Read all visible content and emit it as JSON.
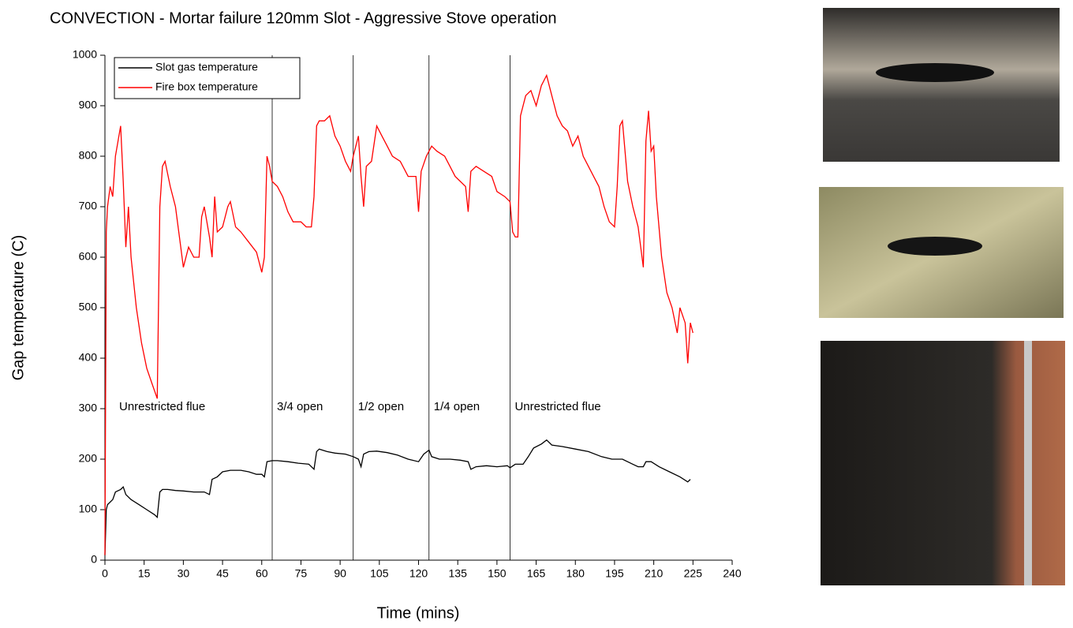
{
  "chart_data": {
    "type": "line",
    "title": "CONVECTION - Mortar failure 120mm Slot - Aggressive Stove operation",
    "x_label": "Time (mins)",
    "y_label": "Gap temperature (C)",
    "xlim": [
      0,
      240
    ],
    "xticks": [
      0,
      15,
      30,
      45,
      60,
      75,
      90,
      105,
      120,
      135,
      150,
      165,
      180,
      195,
      210,
      225,
      240
    ],
    "ylim": [
      0,
      1000
    ],
    "yticks": [
      0,
      100,
      200,
      300,
      400,
      500,
      600,
      700,
      800,
      900,
      1000
    ],
    "legend": "top-left",
    "vlines": [
      64,
      95,
      124,
      155
    ],
    "annotations": [
      "Unrestricted flue",
      "3/4 open",
      "1/2 open",
      "1/4 open",
      "Unrestricted flue"
    ],
    "series": [
      {
        "name": "Slot gas temperature",
        "color": "#000000",
        "x": [
          0,
          0.5,
          1,
          3,
          4,
          6,
          7,
          8,
          10,
          13,
          16,
          19,
          20,
          21,
          22,
          24,
          27,
          30,
          34,
          38,
          40,
          41,
          43,
          45,
          48,
          52,
          55,
          58,
          60,
          61,
          62,
          64,
          66,
          70,
          74,
          78,
          80,
          81,
          82,
          85,
          88,
          92,
          95,
          97,
          98,
          99,
          101,
          104,
          108,
          112,
          116,
          120,
          122,
          124,
          125,
          128,
          132,
          136,
          139,
          140,
          142,
          146,
          150,
          154,
          155,
          157,
          160,
          162,
          164,
          167,
          169,
          171,
          175,
          180,
          185,
          190,
          194,
          198,
          202,
          204,
          206,
          207,
          209,
          212,
          216,
          220,
          223,
          224
        ],
        "values": [
          10,
          100,
          110,
          120,
          135,
          140,
          145,
          130,
          120,
          110,
          100,
          90,
          85,
          135,
          140,
          140,
          138,
          137,
          135,
          135,
          130,
          160,
          165,
          175,
          178,
          178,
          175,
          170,
          170,
          165,
          195,
          197,
          197,
          195,
          192,
          190,
          180,
          215,
          220,
          215,
          212,
          210,
          205,
          200,
          185,
          210,
          215,
          216,
          213,
          208,
          200,
          195,
          210,
          218,
          205,
          200,
          200,
          198,
          195,
          180,
          185,
          187,
          185,
          187,
          183,
          190,
          190,
          205,
          222,
          230,
          238,
          228,
          225,
          220,
          215,
          205,
          200,
          200,
          190,
          185,
          185,
          195,
          195,
          185,
          175,
          165,
          155,
          160
        ]
      },
      {
        "name": "Fire box temperature",
        "color": "#ff0000",
        "x": [
          0,
          0.5,
          1,
          2,
          3,
          4,
          5,
          6,
          7,
          8,
          9,
          10,
          12,
          14,
          16,
          18,
          20,
          21,
          22,
          23,
          25,
          27,
          29,
          30,
          32,
          34,
          36,
          37,
          38,
          40,
          41,
          42,
          43,
          45,
          47,
          48,
          50,
          52,
          55,
          58,
          60,
          61,
          62,
          63,
          64,
          66,
          68,
          70,
          72,
          75,
          77,
          79,
          80,
          81,
          82,
          84,
          86,
          88,
          90,
          92,
          94,
          95,
          96,
          97,
          98,
          99,
          100,
          102,
          104,
          106,
          108,
          110,
          113,
          116,
          119,
          120,
          121,
          123,
          125,
          127,
          130,
          132,
          134,
          136,
          138,
          139,
          140,
          142,
          145,
          148,
          150,
          153,
          155,
          156,
          157,
          158,
          159,
          161,
          163,
          165,
          167,
          168,
          169,
          171,
          173,
          175,
          177,
          179,
          181,
          183,
          185,
          187,
          189,
          191,
          193,
          195,
          196,
          197,
          198,
          199,
          200,
          202,
          204,
          206,
          207,
          208,
          209,
          210,
          211,
          213,
          215,
          217,
          219,
          220,
          222,
          223,
          224,
          225
        ],
        "values": [
          10,
          650,
          700,
          740,
          720,
          800,
          830,
          860,
          750,
          620,
          700,
          600,
          500,
          430,
          380,
          350,
          320,
          700,
          780,
          790,
          740,
          700,
          620,
          580,
          620,
          600,
          600,
          680,
          700,
          640,
          600,
          720,
          650,
          660,
          700,
          710,
          660,
          650,
          630,
          610,
          570,
          600,
          800,
          780,
          750,
          740,
          720,
          690,
          670,
          670,
          660,
          660,
          720,
          860,
          870,
          870,
          880,
          840,
          820,
          790,
          770,
          800,
          820,
          840,
          760,
          700,
          780,
          790,
          860,
          840,
          820,
          800,
          790,
          760,
          760,
          690,
          770,
          800,
          820,
          810,
          800,
          780,
          760,
          750,
          740,
          690,
          770,
          780,
          770,
          760,
          730,
          720,
          710,
          650,
          640,
          640,
          880,
          920,
          930,
          900,
          940,
          950,
          960,
          920,
          880,
          860,
          850,
          820,
          840,
          800,
          780,
          760,
          740,
          700,
          670,
          660,
          740,
          860,
          870,
          810,
          750,
          700,
          660,
          580,
          830,
          890,
          810,
          820,
          720,
          600,
          530,
          500,
          450,
          500,
          470,
          390,
          470,
          450
        ]
      }
    ]
  }
}
